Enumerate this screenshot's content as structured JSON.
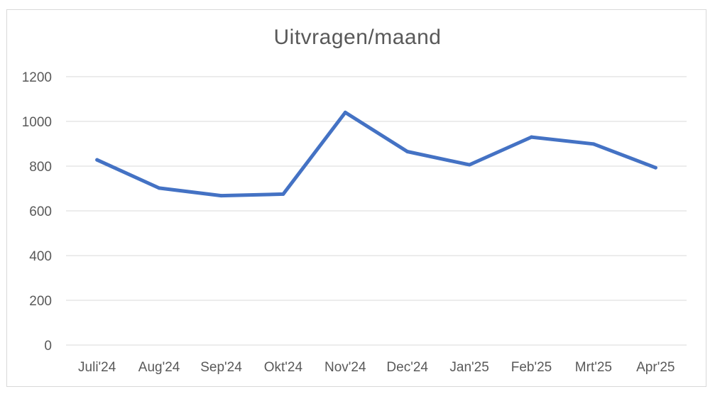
{
  "chart_data": {
    "type": "line",
    "title": "Uitvragen/maand",
    "xlabel": "",
    "ylabel": "",
    "categories": [
      "Juli'24",
      "Aug'24",
      "Sep'24",
      "Okt'24",
      "Nov'24",
      "Dec'24",
      "Jan'25",
      "Feb'25",
      "Mrt'25",
      "Apr'25"
    ],
    "series": [
      {
        "values": [
          828,
          702,
          668,
          675,
          1040,
          865,
          806,
          930,
          899,
          793
        ],
        "color": "#4472c4"
      }
    ],
    "ylim": [
      0,
      1200
    ],
    "yticks": [
      0,
      200,
      400,
      600,
      800,
      1000,
      1200
    ],
    "grid": true,
    "legend": "none"
  }
}
